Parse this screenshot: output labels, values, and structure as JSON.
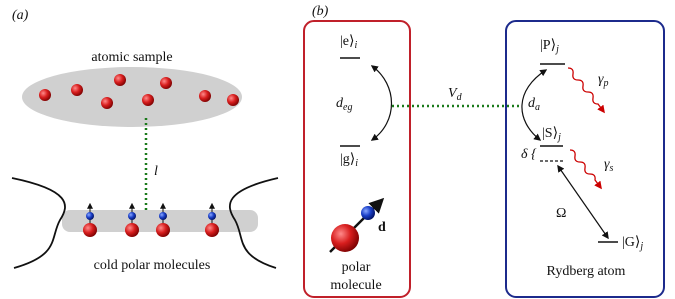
{
  "panel_a": {
    "label": "(a)",
    "sample_label": "atomic sample",
    "distance_label": "l",
    "molecules_label": "cold polar molecules"
  },
  "panel_b": {
    "label": "(b)",
    "molecule": {
      "state_e": {
        "main": "|e⟩",
        "sub": "i"
      },
      "state_g": {
        "main": "|g⟩",
        "sub": "i"
      },
      "dipole_transition": {
        "main": "d",
        "sub": "eg"
      },
      "dipole": "d",
      "caption": [
        "polar",
        "molecule"
      ]
    },
    "coupling": {
      "main": "V",
      "sub": "d"
    },
    "atom": {
      "state_p": {
        "main": "|P⟩",
        "sub": "j"
      },
      "gamma_p": {
        "main": "γ",
        "sub": "p"
      },
      "dipole_transition": {
        "main": "d",
        "sub": "a"
      },
      "state_s": {
        "main": "|S⟩",
        "sub": "j"
      },
      "detuning": "δ {",
      "gamma_s": {
        "main": "γ",
        "sub": "s"
      },
      "rabi": "Ω",
      "state_g": {
        "main": "|G⟩",
        "sub": "j"
      },
      "caption": "Rydberg atom"
    }
  }
}
